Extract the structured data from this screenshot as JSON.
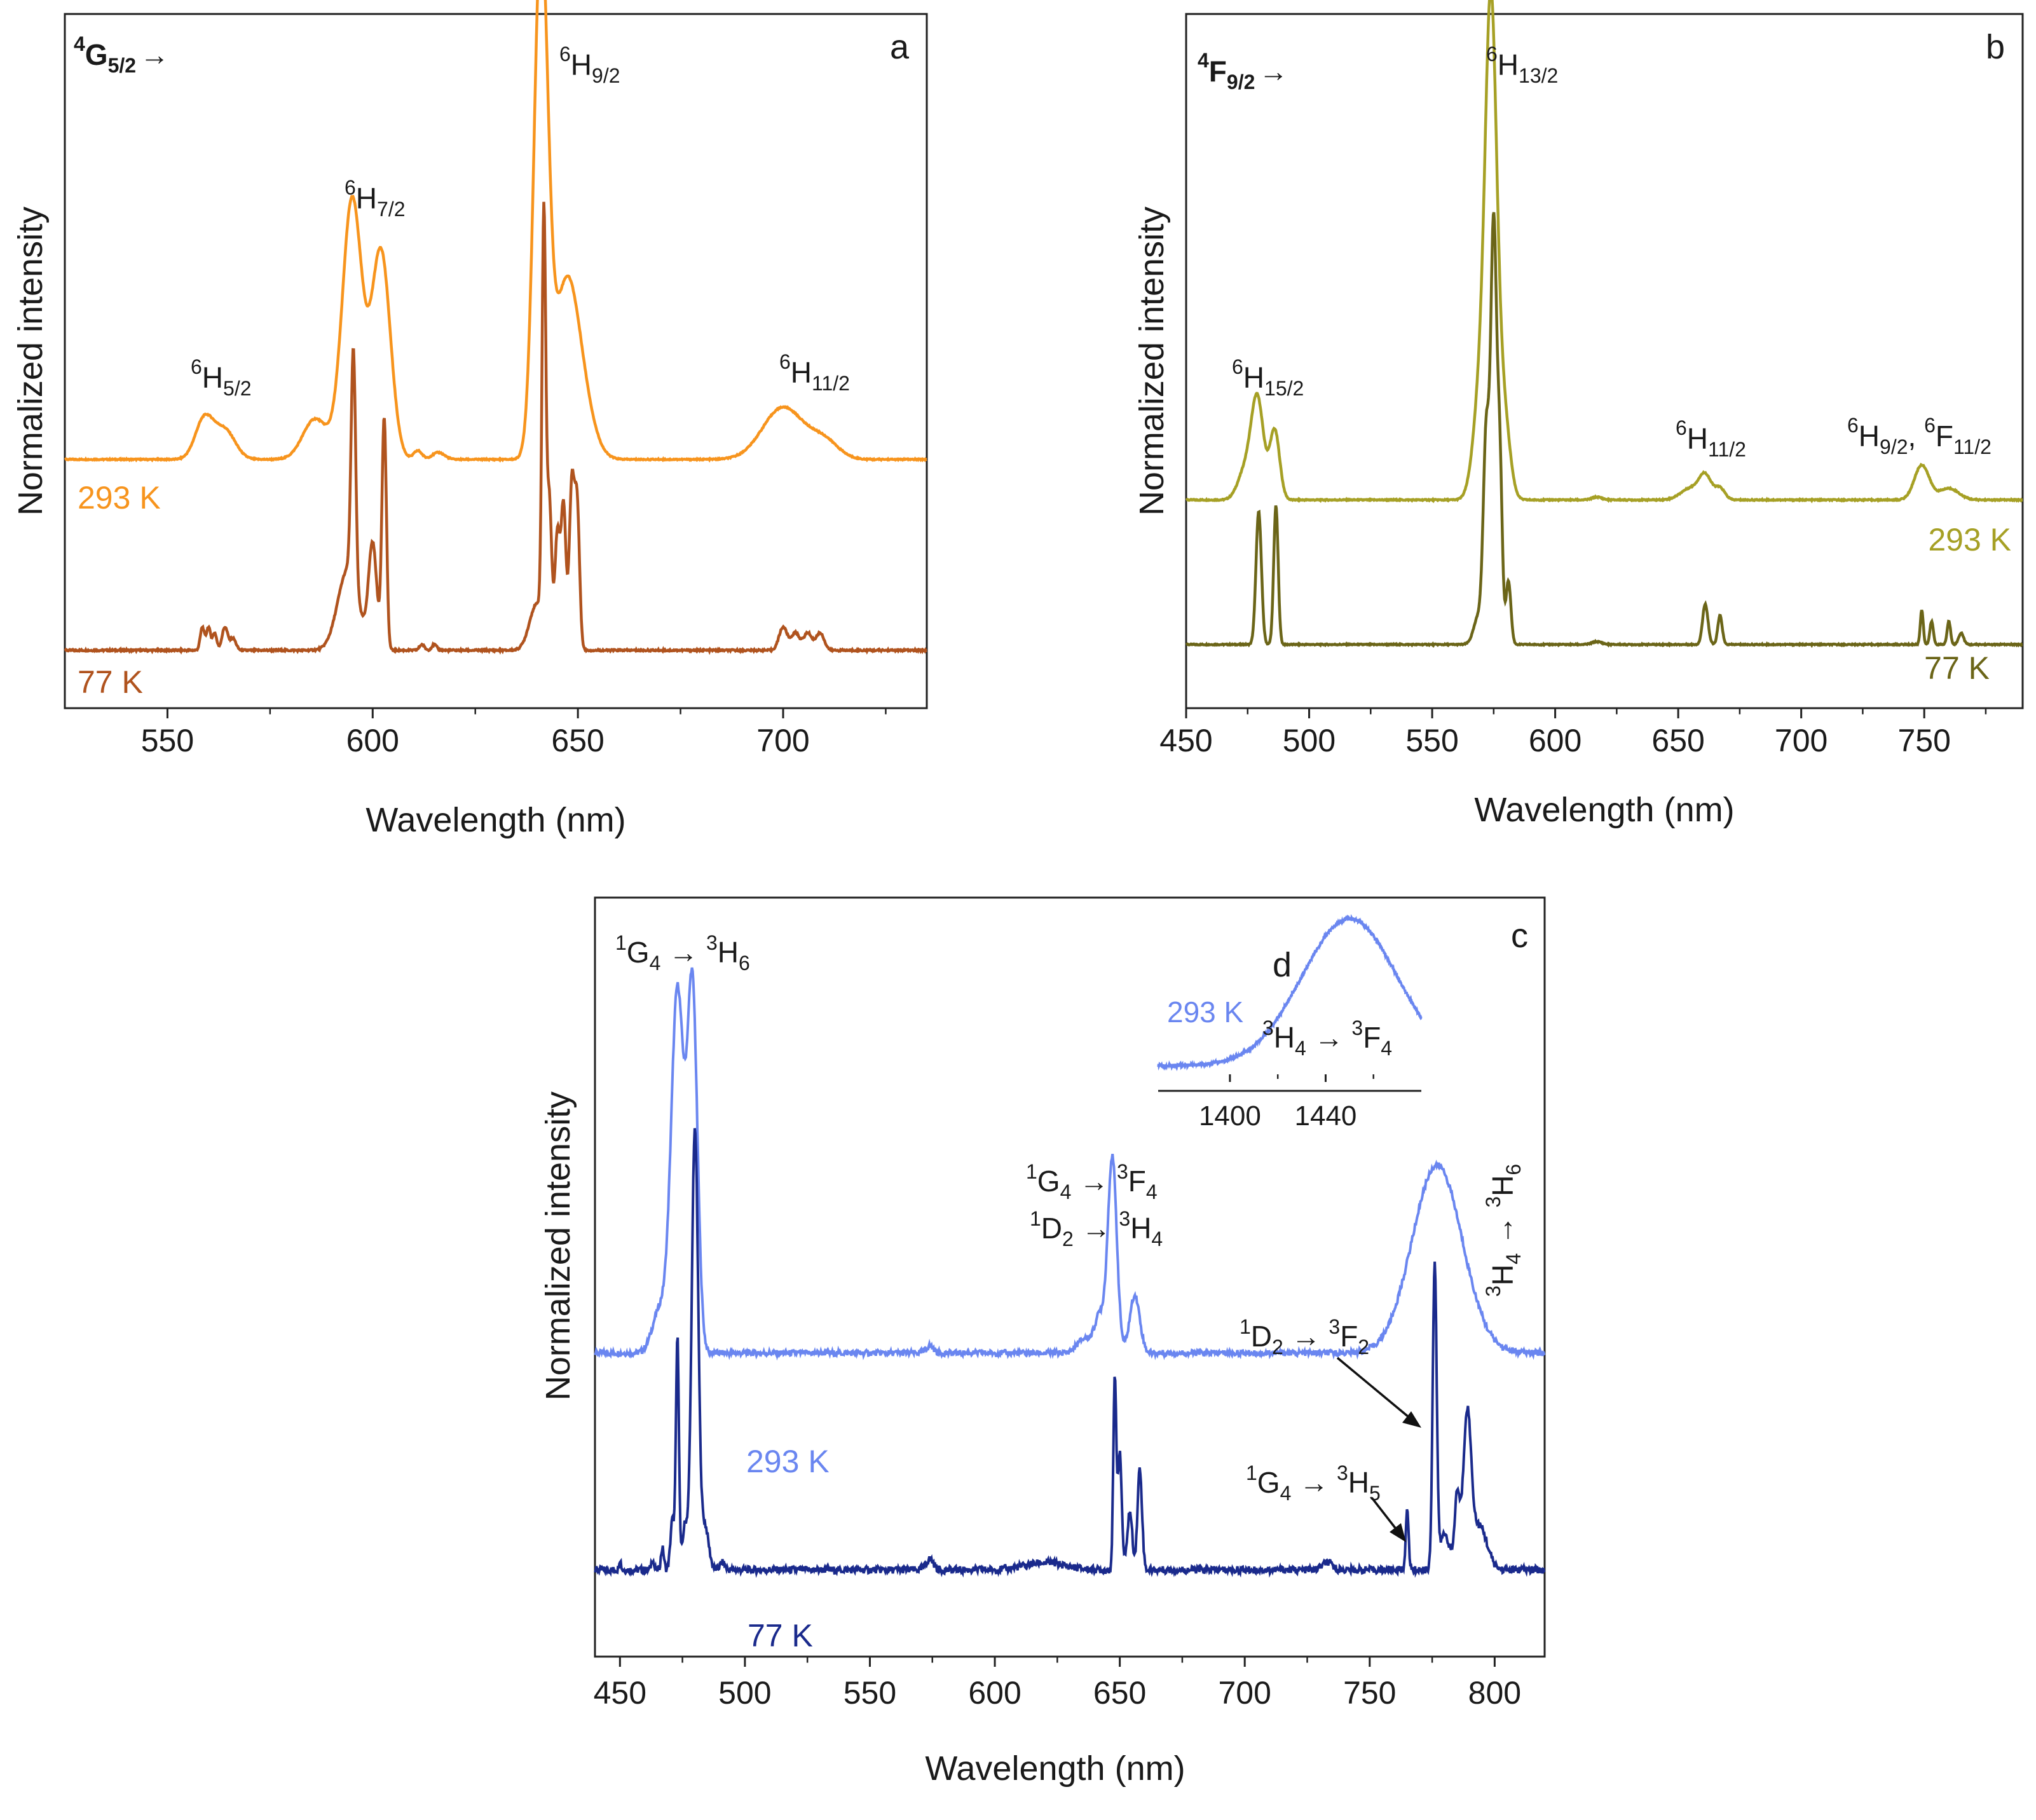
{
  "figure": {
    "panels": [
      "a",
      "b",
      "c",
      "d"
    ]
  },
  "chart_data": [
    {
      "id": "a",
      "type": "line",
      "panel_label": "a",
      "title": "4G5/2 →",
      "title_parts": {
        "base": "4",
        "sym": "G",
        "sub": "5/2",
        "arrow": "→"
      },
      "xlabel": "Wavelength (nm)",
      "ylabel": "Normalized intensity",
      "xlim": [
        525,
        735
      ],
      "ylim": [
        0,
        1.2
      ],
      "xticks": [
        550,
        600,
        650,
        700
      ],
      "tick_labels": [
        "550",
        "600",
        "650",
        "700"
      ],
      "colors": {
        "293 K": "#f7941d",
        "77 K": "#b0531e"
      },
      "series": [
        {
          "name": "293 K",
          "offset": 0.43,
          "peaks": [
            [
              559,
              0.07,
              2.2
            ],
            [
              564,
              0.05,
              2.5
            ],
            [
              586,
              0.07,
              3
            ],
            [
              595,
              0.45,
              2.4
            ],
            [
              602,
              0.36,
              2.3
            ],
            [
              611,
              0.015,
              1
            ],
            [
              616,
              0.012,
              1.5
            ],
            [
              641,
              0.88,
              1.7
            ],
            [
              647,
              0.28,
              3
            ],
            [
              651,
              0.08,
              3
            ],
            [
              700,
              0.09,
              5
            ],
            [
              710,
              0.03,
              3.5
            ]
          ]
        },
        {
          "name": "77 K",
          "offset": 0.1,
          "peaks": [
            [
              558.5,
              0.04,
              0.5
            ],
            [
              560,
              0.04,
              0.5
            ],
            [
              561.5,
              0.03,
              0.5
            ],
            [
              564,
              0.04,
              0.7
            ],
            [
              566,
              0.02,
              0.7
            ],
            [
              594,
              0.14,
              2.5
            ],
            [
              595.3,
              0.4,
              0.55
            ],
            [
              600,
              0.18,
              1
            ],
            [
              602.8,
              0.4,
              0.55
            ],
            [
              612,
              0.01,
              0.6
            ],
            [
              615,
              0.01,
              0.6
            ],
            [
              640,
              0.08,
              1.8
            ],
            [
              641.7,
              0.7,
              0.45
            ],
            [
              643,
              0.25,
              0.6
            ],
            [
              645,
              0.2,
              0.6
            ],
            [
              646.5,
              0.25,
              0.6
            ],
            [
              648.5,
              0.28,
              0.6
            ],
            [
              649.8,
              0.25,
              0.6
            ],
            [
              700,
              0.04,
              1
            ],
            [
              703,
              0.03,
              1
            ],
            [
              706,
              0.03,
              1
            ],
            [
              709,
              0.03,
              1
            ]
          ]
        }
      ],
      "legend": [
        "293 K",
        "77 K"
      ],
      "annotations": [
        {
          "base": "6",
          "sym": "H",
          "sub": "5/2",
          "at_x": 560
        },
        {
          "base": "6",
          "sym": "H",
          "sub": "7/2",
          "at_x": 596
        },
        {
          "base": "6",
          "sym": "H",
          "sub": "9/2",
          "at_x": 645
        },
        {
          "base": "6",
          "sym": "H",
          "sub": "11/2",
          "at_x": 700
        }
      ]
    },
    {
      "id": "b",
      "type": "line",
      "panel_label": "b",
      "title": "4F9/2 →",
      "title_parts": {
        "base": "4",
        "sym": "F",
        "sub": "9/2",
        "arrow": "→"
      },
      "xlabel": "Wavelength (nm)",
      "ylabel": "Normalized intensity",
      "xlim": [
        450,
        790
      ],
      "ylim": [
        0,
        1.2
      ],
      "xticks": [
        450,
        500,
        550,
        600,
        650,
        700,
        750
      ],
      "tick_labels": [
        "450",
        "500",
        "550",
        "600",
        "650",
        "700",
        "750"
      ],
      "colors": {
        "293 K": "#a6a025",
        "77 K": "#6b6518"
      },
      "series": [
        {
          "name": "293 K",
          "offset": 0.36,
          "peaks": [
            [
              474,
              0.05,
              3
            ],
            [
              479,
              0.17,
              2.5
            ],
            [
              486,
              0.12,
              2
            ],
            [
              570,
              0.2,
              3
            ],
            [
              574,
              0.78,
              2.3
            ],
            [
              579,
              0.15,
              2.5
            ],
            [
              617,
              0.005,
              2
            ],
            [
              655,
              0.02,
              4
            ],
            [
              661,
              0.04,
              2.5
            ],
            [
              667,
              0.02,
              2
            ],
            [
              749,
              0.06,
              3
            ],
            [
              760,
              0.02,
              4
            ]
          ]
        },
        {
          "name": "77 K",
          "offset": 0.11,
          "peaks": [
            [
              479.5,
              0.23,
              1.1
            ],
            [
              486.5,
              0.24,
              0.9
            ],
            [
              569,
              0.05,
              2
            ],
            [
              572,
              0.35,
              1.2
            ],
            [
              575,
              0.72,
              1.2
            ],
            [
              577.5,
              0.3,
              1
            ],
            [
              581,
              0.11,
              1
            ],
            [
              617,
              0.005,
              2
            ],
            [
              661,
              0.07,
              1.1
            ],
            [
              667,
              0.05,
              0.9
            ],
            [
              749,
              0.06,
              0.6
            ],
            [
              753,
              0.04,
              0.7
            ],
            [
              760,
              0.04,
              0.7
            ],
            [
              765,
              0.02,
              1
            ]
          ]
        }
      ],
      "legend": [
        "293 K",
        "77 K"
      ],
      "annotations": [
        {
          "base": "6",
          "sym": "H",
          "sub": "15/2",
          "at_x": 482
        },
        {
          "base": "6",
          "sym": "H",
          "sub": "13/2",
          "at_x": 574
        },
        {
          "base": "6",
          "sym": "H",
          "sub": "11/2",
          "at_x": 662
        },
        {
          "text": "6H9/2, 6F11/2",
          "at_x": 750
        }
      ]
    },
    {
      "id": "c",
      "type": "line",
      "panel_label": "c",
      "xlabel": "Wavelength (nm)",
      "ylabel": "Normalized intensity",
      "xlim": [
        440,
        820
      ],
      "ylim": [
        0,
        1.05
      ],
      "xticks": [
        450,
        500,
        550,
        600,
        650,
        700,
        750,
        800
      ],
      "tick_labels": [
        "450",
        "500",
        "550",
        "600",
        "650",
        "700",
        "750",
        "800"
      ],
      "colors": {
        "293 K": "#6a86f0",
        "77 K": "#1a2a8c"
      },
      "series": [
        {
          "name": "293 K",
          "offset": 0.42,
          "peaks": [
            [
              466,
              0.06,
              3
            ],
            [
              473,
              0.5,
              2.5
            ],
            [
              479,
              0.5,
              2
            ],
            [
              574,
              0.01,
              1.5
            ],
            [
              636,
              0.02,
              3
            ],
            [
              642,
              0.05,
              2
            ],
            [
              647,
              0.27,
              1.8
            ],
            [
              656,
              0.08,
              2
            ],
            [
              777,
              0.26,
              10
            ]
          ]
        },
        {
          "name": "77 K",
          "offset": 0.12,
          "peaks": [
            [
              450,
              0.015,
              0.4
            ],
            [
              463,
              0.015,
              0.5
            ],
            [
              467,
              0.03,
              0.6
            ],
            [
              471,
              0.07,
              0.8
            ],
            [
              473,
              0.32,
              0.6
            ],
            [
              476,
              0.06,
              1
            ],
            [
              480,
              0.61,
              1.3
            ],
            [
              484,
              0.06,
              1.5
            ],
            [
              491,
              0.01,
              1
            ],
            [
              574,
              0.015,
              1.5
            ],
            [
              620,
              0.01,
              8
            ],
            [
              648,
              0.26,
              0.6
            ],
            [
              650,
              0.16,
              0.8
            ],
            [
              654,
              0.08,
              1
            ],
            [
              658,
              0.14,
              0.9
            ],
            [
              733,
              0.01,
              2
            ],
            [
              765,
              0.08,
              0.6
            ],
            [
              776,
              0.42,
              0.8
            ],
            [
              780,
              0.05,
              2
            ],
            [
              785,
              0.1,
              1
            ],
            [
              789,
              0.21,
              1.6
            ],
            [
              794,
              0.06,
              3
            ]
          ]
        }
      ],
      "legend": [
        "293 K",
        "77 K"
      ],
      "annotations": [
        {
          "text": "1G4 → 3H6"
        },
        {
          "text": "1G4 → 3F4"
        },
        {
          "text": "1D2 → 3H4"
        },
        {
          "text": "1D2 → 3F2"
        },
        {
          "text": "1G4 → 3H5"
        },
        {
          "text": "3H4 → 3H6"
        }
      ]
    },
    {
      "id": "d",
      "type": "line",
      "panel_label": "d",
      "xlim": [
        1370,
        1480
      ],
      "ylim": [
        0,
        1
      ],
      "xticks": [
        1400,
        1440
      ],
      "tick_labels": [
        "1400",
        "1440"
      ],
      "colors": {
        "293 K": "#6a86f0"
      },
      "series": [
        {
          "name": "293 K",
          "baseline": 0.05,
          "peaks": [
            [
              1450,
              0.85,
              20
            ]
          ]
        }
      ],
      "legend": [
        "293 K"
      ],
      "annotations": [
        {
          "text": "3H4 → 3F4"
        }
      ]
    }
  ]
}
